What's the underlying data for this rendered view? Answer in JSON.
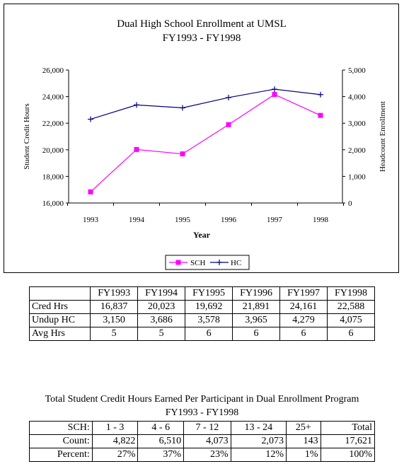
{
  "chart_data": {
    "type": "line",
    "title": "Dual High School Enrollment at UMSL",
    "subtitle": "FY1993 - FY1998",
    "xlabel": "Year",
    "ylabel": "Student Credit Hours",
    "y2label": "Headcount Enrollment",
    "categories": [
      "1993",
      "1994",
      "1995",
      "1996",
      "1997",
      "1998"
    ],
    "ylim": [
      16000,
      26000
    ],
    "y2lim": [
      0,
      5000
    ],
    "yticks": [
      "16,000",
      "18,000",
      "20,000",
      "22,000",
      "24,000",
      "26,000"
    ],
    "y2ticks": [
      "0",
      "1,000",
      "2,000",
      "3,000",
      "4,000",
      "5,000"
    ],
    "legend_position": "bottom",
    "series": [
      {
        "name": "SCH",
        "axis": "left",
        "color": "#ff00ff",
        "marker": "square",
        "values": [
          16837,
          20023,
          19692,
          21891,
          24161,
          22588
        ]
      },
      {
        "name": "HC",
        "axis": "right",
        "color": "#000080",
        "marker": "cross",
        "values": [
          3150,
          3686,
          3578,
          3965,
          4279,
          4075
        ]
      }
    ]
  },
  "enrollment_table": {
    "headers": [
      "",
      "FY1993",
      "FY1994",
      "FY1995",
      "FY1996",
      "FY1997",
      "FY1998"
    ],
    "rows": [
      [
        "Cred Hrs",
        "16,837",
        "20,023",
        "19,692",
        "21,891",
        "24,161",
        "22,588"
      ],
      [
        "Undup HC",
        "3,150",
        "3,686",
        "3,578",
        "3,965",
        "4,279",
        "4,075"
      ],
      [
        "Avg Hrs",
        "5",
        "5",
        "6",
        "6",
        "6",
        "6"
      ]
    ]
  },
  "sch_section": {
    "title": "Total Student Credit Hours Earned Per Participant in Dual Enrollment Program",
    "subtitle": "FY1993 - FY1998",
    "rows": [
      [
        "SCH:",
        "1 - 3",
        "4 - 6",
        "7 - 12",
        "13 - 24",
        "25+",
        "Total"
      ],
      [
        "Count:",
        "4,822",
        "6,510",
        "4,073",
        "2,073",
        "143",
        "17,621"
      ],
      [
        "Percent:",
        "27%",
        "37%",
        "23%",
        "12%",
        "1%",
        "100%"
      ]
    ]
  }
}
